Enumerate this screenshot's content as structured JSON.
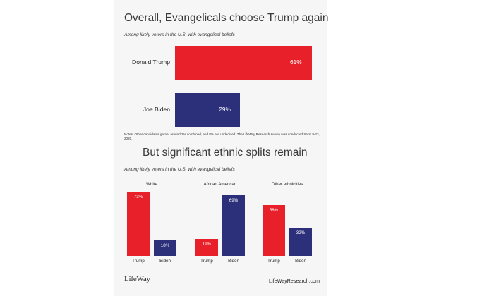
{
  "colors": {
    "trump": "#e8202a",
    "biden": "#2c2f7a",
    "panel": "#f6f6f6"
  },
  "top": {
    "title": "Overall, Evangelicals choose Trump again",
    "subtitle": "Among likely voters in the U.S. with evangelical beliefs",
    "notes": "Notes: Other candidates garner around 2% combined, and 8% are undecided. The LifeWay Research survey was conducted Sept. 9-23, 2020."
  },
  "bottom": {
    "title": "But significant ethnic splits remain",
    "subtitle": "Among likely voters in the U.S. with evangelical beliefs"
  },
  "chart_data": [
    {
      "type": "bar",
      "orientation": "horizontal",
      "categories": [
        "Donald Trump",
        "Joe Biden"
      ],
      "values": [
        61,
        29
      ],
      "labels": [
        "61%",
        "29%"
      ],
      "xlim": [
        0,
        61
      ]
    },
    {
      "type": "bar",
      "groups": [
        {
          "title": "White",
          "categories": [
            "Trump",
            "Biden"
          ],
          "values": [
            73,
            18
          ],
          "labels": [
            "73%",
            "18%"
          ]
        },
        {
          "title": "African American",
          "categories": [
            "Trump",
            "Biden"
          ],
          "values": [
            19,
            69
          ],
          "labels": [
            "19%",
            "69%"
          ]
        },
        {
          "title": "Other ethnicities",
          "categories": [
            "Trump",
            "Biden"
          ],
          "values": [
            58,
            32
          ],
          "labels": [
            "58%",
            "32%"
          ]
        }
      ],
      "ylim": [
        0,
        73
      ]
    }
  ],
  "footer": {
    "logo": "LifeWay",
    "site": "LifeWayResearch.com"
  }
}
